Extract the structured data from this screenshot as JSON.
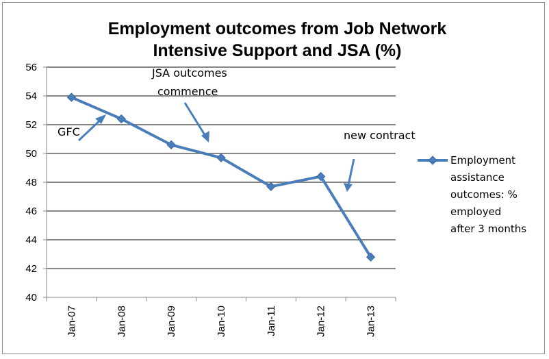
{
  "chart_data": {
    "type": "line",
    "title_lines": [
      "Employment outcomes from Job Network",
      "Intensive Support and JSA (%)"
    ],
    "categories": [
      "Jan-07",
      "Jan-08",
      "Jan-09",
      "Jan-10",
      "Jan-11",
      "Jan-12",
      "Jan-13"
    ],
    "series": [
      {
        "name_lines": [
          "Employment",
          "assistance",
          "outcomes: %",
          "employed",
          "after 3 months"
        ],
        "values": [
          53.9,
          52.4,
          50.6,
          49.7,
          47.7,
          48.4,
          42.8
        ],
        "color": "#4a7ebb"
      }
    ],
    "ylim": [
      40,
      56
    ],
    "yticks": [
      40,
      42,
      44,
      46,
      48,
      50,
      52,
      54,
      56
    ],
    "grid": true,
    "legend_position": "right",
    "annotations": {
      "gfc": "GFC",
      "jsa_lines": [
        "JSA outcomes",
        "commence"
      ],
      "new_contract": "new contract"
    },
    "colors": {
      "series": "#4a7ebb",
      "arrow": "#4a7ebb",
      "grid": "#868686"
    }
  }
}
